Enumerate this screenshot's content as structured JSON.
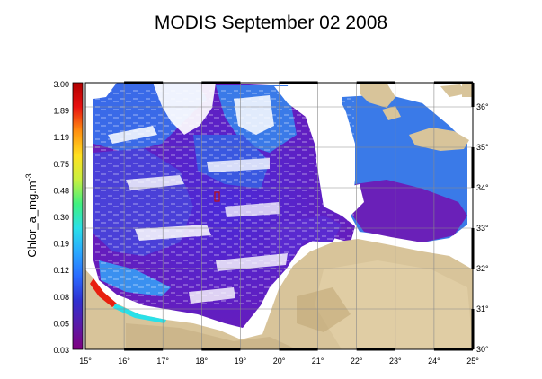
{
  "title": "MODIS September 02 2008",
  "colorbar": {
    "label": "Chlor_a_mg.m",
    "label_superscript": "-3",
    "tick_labels": [
      "3.00",
      "1.89",
      "1.19",
      "0.75",
      "0.48",
      "0.30",
      "0.19",
      "0.12",
      "0.08",
      "0.05",
      "0.03"
    ],
    "colors": [
      "#800080",
      "#5a1aa8",
      "#3030d0",
      "#2a6aff",
      "#2aa8ff",
      "#2ae0e8",
      "#40f080",
      "#c8f040",
      "#ffe020",
      "#ff9010",
      "#e81010",
      "#b00000"
    ]
  },
  "axes": {
    "lon_labels": [
      "15",
      "16",
      "17",
      "18",
      "19",
      "20",
      "21",
      "22",
      "23",
      "24",
      "25"
    ],
    "lat_labels": [
      "30",
      "31",
      "32",
      "33",
      "34",
      "35",
      "36"
    ],
    "lon_range": [
      15,
      25
    ],
    "lat_range": [
      30,
      36.6
    ],
    "degree_symbol": "°"
  },
  "colors": {
    "land": "#d8c49a",
    "land_dark": "#c2a878",
    "sea_high": "#3a7ae8",
    "sea_mid": "#5a2ad0",
    "sea_low": "#7a1aa0",
    "no_data": "#ffffff",
    "grid": "#8a8a8a"
  }
}
